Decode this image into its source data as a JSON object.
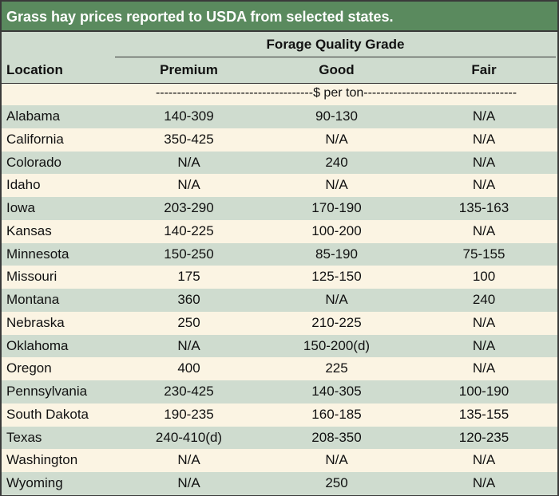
{
  "title": "Grass hay prices reported to USDA from selected states.",
  "header": {
    "group_label": "Forage Quality Grade",
    "location_label": "Location",
    "columns": [
      "Premium",
      "Good",
      "Fair"
    ]
  },
  "units": "-------------------------------------$ per ton------------------------------------",
  "rows": [
    {
      "location": "Alabama",
      "premium": "140-309",
      "good": "90-130",
      "fair": "N/A"
    },
    {
      "location": "California",
      "premium": "350-425",
      "good": "N/A",
      "fair": "N/A"
    },
    {
      "location": "Colorado",
      "premium": "N/A",
      "good": "240",
      "fair": "N/A"
    },
    {
      "location": "Idaho",
      "premium": "N/A",
      "good": "N/A",
      "fair": "N/A"
    },
    {
      "location": "Iowa",
      "premium": "203-290",
      "good": "170-190",
      "fair": "135-163"
    },
    {
      "location": "Kansas",
      "premium": "140-225",
      "good": "100-200",
      "fair": "N/A"
    },
    {
      "location": "Minnesota",
      "premium": "150-250",
      "good": "85-190",
      "fair": "75-155"
    },
    {
      "location": "Missouri",
      "premium": "175",
      "good": "125-150",
      "fair": "100"
    },
    {
      "location": "Montana",
      "premium": "360",
      "good": "N/A",
      "fair": "240"
    },
    {
      "location": "Nebraska",
      "premium": "250",
      "good": "210-225",
      "fair": "N/A"
    },
    {
      "location": "Oklahoma",
      "premium": "N/A",
      "good": "150-200(d)",
      "fair": "N/A"
    },
    {
      "location": "Oregon",
      "premium": "400",
      "good": "225",
      "fair": "N/A"
    },
    {
      "location": "Pennsylvania",
      "premium": "230-425",
      "good": "140-305",
      "fair": "100-190"
    },
    {
      "location": "South Dakota",
      "premium": "190-235",
      "good": "160-185",
      "fair": "135-155"
    },
    {
      "location": "Texas",
      "premium": "240-410(d)",
      "good": "208-350",
      "fair": "120-235"
    },
    {
      "location": "Washington",
      "premium": "N/A",
      "good": "N/A",
      "fair": "N/A"
    },
    {
      "location": "Wyoming",
      "premium": "N/A",
      "good": "250",
      "fair": "N/A"
    }
  ]
}
